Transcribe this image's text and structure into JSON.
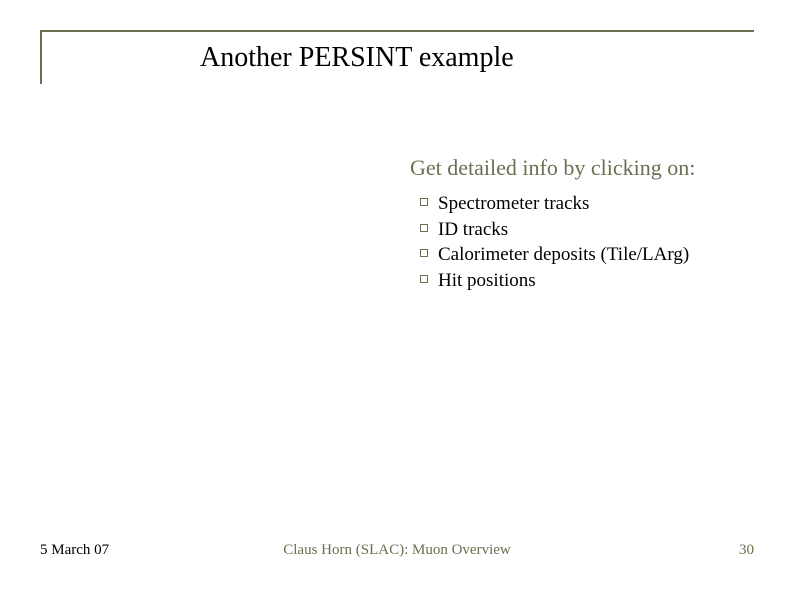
{
  "slide": {
    "title": "Another PERSINT example",
    "subheading": "Get detailed info by clicking on:",
    "bullets": [
      "Spectrometer tracks",
      "ID tracks",
      "Calorimeter deposits (Tile/LArg)",
      "Hit positions"
    ]
  },
  "footer": {
    "date": "5 March 07",
    "center": "Claus Horn (SLAC): Muon Overview",
    "page": "30"
  },
  "colors": {
    "accent": "#6b7050",
    "text": "#000000",
    "background": "#ffffff"
  },
  "typography": {
    "title_fontsize": 28,
    "subheading_fontsize": 22,
    "bullet_fontsize": 19,
    "footer_fontsize": 15,
    "font_family": "Times New Roman"
  }
}
